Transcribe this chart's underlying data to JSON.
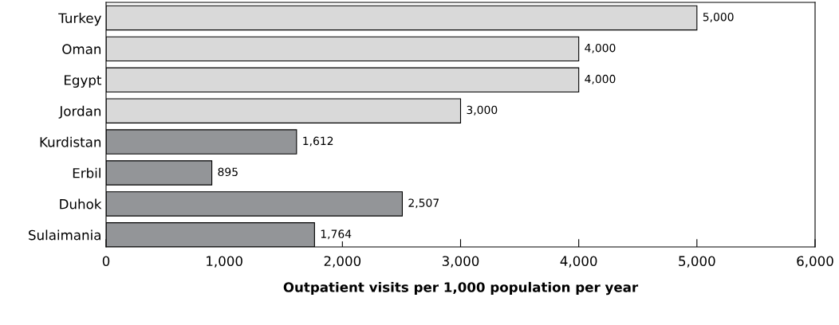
{
  "chart_data": {
    "type": "bar",
    "orientation": "horizontal",
    "xlabel": "Outpatient visits per 1,000 population per year",
    "categories": [
      "Turkey",
      "Oman",
      "Egypt",
      "Jordan",
      "Kurdistan",
      "Erbil",
      "Duhok",
      "Sulaimania"
    ],
    "values": [
      5000,
      4000,
      4000,
      3000,
      1612,
      895,
      2507,
      1764
    ],
    "colors": [
      "#d9d9d9",
      "#d9d9d9",
      "#d9d9d9",
      "#d9d9d9",
      "#939598",
      "#939598",
      "#939598",
      "#939598"
    ],
    "xlim": [
      0,
      6000
    ],
    "xticks": [
      {
        "value": 0,
        "label": "0"
      },
      {
        "value": 1000,
        "label": "1,000"
      },
      {
        "value": 2000,
        "label": "2,000"
      },
      {
        "value": 3000,
        "label": "3,000"
      },
      {
        "value": 4000,
        "label": "4,000"
      },
      {
        "value": 5000,
        "label": "5,000"
      },
      {
        "value": 6000,
        "label": "6,000"
      }
    ],
    "value_labels": [
      "5,000",
      "4,000",
      "4,000",
      "3,000",
      "1,612",
      "895",
      "2,507",
      "1,764"
    ],
    "legend": false
  }
}
